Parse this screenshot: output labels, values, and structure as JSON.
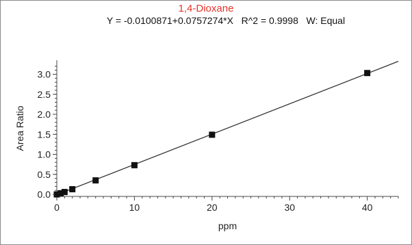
{
  "chart_data": {
    "type": "scatter",
    "title": "1,4-Dioxane",
    "subtitle": "Y = -0.0100871+0.0757274*X   R^2 = 0.9998   W: Equal",
    "xlabel": "ppm",
    "ylabel": "Area Ratio",
    "xlim": [
      0,
      44
    ],
    "ylim": [
      -0.05,
      3.35
    ],
    "x_ticks": [
      "0",
      "10",
      "20",
      "30",
      "40"
    ],
    "y_ticks": [
      "0.0",
      "0.5",
      "1.0",
      "1.5",
      "2.0",
      "2.5",
      "3.0"
    ],
    "grid": false,
    "series": [
      {
        "x": [
          0,
          0.5,
          1,
          2,
          5,
          10,
          20,
          40
        ],
        "y": [
          0.0,
          0.03,
          0.06,
          0.13,
          0.35,
          0.73,
          1.49,
          3.03
        ]
      }
    ],
    "fit_line": {
      "intercept": -0.0100871,
      "slope": 0.0757274
    },
    "colors": {
      "title": "#e8342c",
      "points": "#111111",
      "line": "#333333"
    }
  }
}
